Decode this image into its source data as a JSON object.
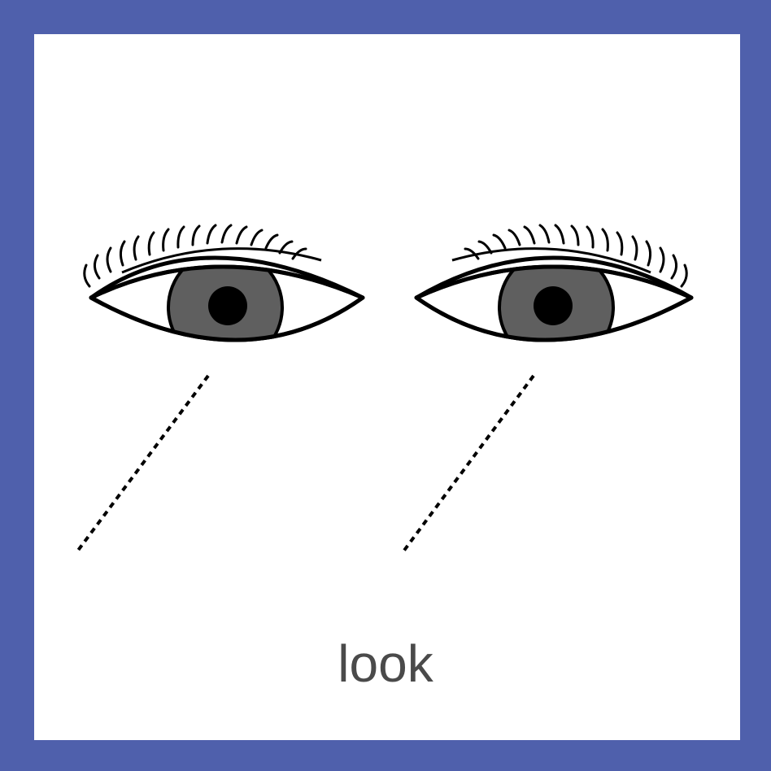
{
  "card": {
    "word": "look"
  },
  "colors": {
    "frame": "#4f60ac",
    "card_background": "#ffffff",
    "outline": "#000000",
    "iris": "#5f5f5f",
    "pupil": "#000000",
    "caption_text": "#4a4a4a"
  },
  "icons": {
    "left_eye": "eye-icon",
    "right_eye": "eye-icon",
    "gaze_lines": "dotted-line"
  }
}
